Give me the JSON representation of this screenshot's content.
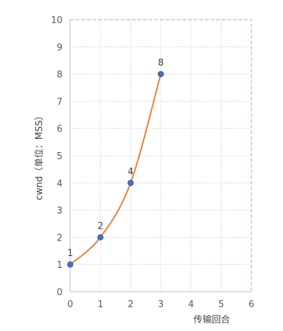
{
  "chart_data": {
    "type": "scatter",
    "x": [
      0,
      1,
      2,
      3
    ],
    "y": [
      1,
      2,
      4,
      8
    ],
    "data_labels": [
      "1",
      "2",
      "4",
      "8"
    ],
    "xlabel": "传输回合",
    "ylabel": "cwnd（单位：MSS）",
    "xlim": [
      0,
      6
    ],
    "ylim": [
      0,
      10
    ],
    "x_ticks": [
      "0",
      "1",
      "2",
      "3",
      "4",
      "5",
      "6"
    ],
    "y_ticks": [
      "0",
      "1",
      "2",
      "3",
      "4",
      "5",
      "6",
      "7",
      "8",
      "9",
      "10"
    ],
    "grid": true,
    "smooth_line": true,
    "colors": {
      "line": "#ED7D31",
      "marker": "#4472C4",
      "grid": "#D0D0D0",
      "plot_border": "#8FAADC"
    }
  }
}
